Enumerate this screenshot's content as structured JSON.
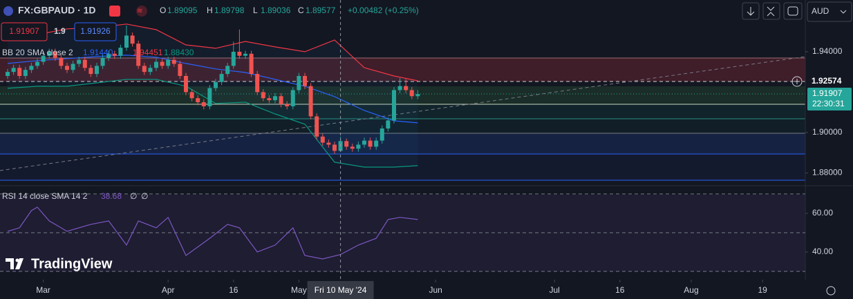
{
  "header": {
    "symbol": "FX:GBPAUD · 1D",
    "ohlc": [
      [
        "O",
        "1.89095"
      ],
      [
        "H",
        "1.89798"
      ],
      [
        "L",
        "1.89036"
      ],
      [
        "C",
        "1.89577"
      ]
    ],
    "change": "+0.00482 (+0.25%)"
  },
  "trade": {
    "sell": "1.91907",
    "spread": "1.9",
    "buy": "1.91926"
  },
  "bb_legend": {
    "label": "BB 20 SMA close 2",
    "values": [
      "1.91440",
      "1.94451",
      "1.88430"
    ]
  },
  "rsi_legend": {
    "label": "RSI 14 close SMA 14 2",
    "values": [
      "38.68",
      "∅",
      "∅"
    ]
  },
  "currency": "AUD",
  "price_labels": {
    "line": "1.92574",
    "last": "1.91907",
    "countdown": "22:30:31"
  },
  "logo": "TradingView",
  "chart_data": [
    {
      "type": "candlestick",
      "xlim": [
        -1.28,
        134.19
      ],
      "ylim": [
        1.874,
        1.9656
      ],
      "yticks": [
        {
          "value": 1.94,
          "label": "1.94000"
        },
        {
          "value": 1.9,
          "label": "1.90000"
        },
        {
          "value": 1.88,
          "label": "1.88000"
        }
      ],
      "xticks": [
        {
          "value": 6,
          "label": "Mar"
        },
        {
          "value": 27,
          "label": "Apr"
        },
        {
          "value": 38,
          "label": "16"
        },
        {
          "value": 49,
          "label": "May"
        },
        {
          "value": 72,
          "label": "Jun"
        },
        {
          "value": 92,
          "label": "Jul"
        },
        {
          "value": 103,
          "label": "16"
        },
        {
          "value": 115,
          "label": "Aug"
        },
        {
          "value": 127,
          "label": "19"
        }
      ],
      "crosshair": {
        "value": 56,
        "label": "Fri 10 May '24"
      },
      "up_color": "#26a69a",
      "down_color": "#ef5350",
      "open": [
        1.928,
        1.93,
        1.932,
        1.928,
        1.931,
        1.933,
        1.935,
        1.938,
        1.94,
        1.937,
        1.933,
        1.931,
        1.934,
        1.936,
        1.932,
        1.929,
        1.933,
        1.937,
        1.939,
        1.938,
        1.942,
        1.948,
        1.944,
        1.933,
        1.93,
        1.932,
        1.935,
        1.933,
        1.936,
        1.934,
        1.928,
        1.92,
        1.917,
        1.915,
        1.913,
        1.922,
        1.925,
        1.929,
        1.933,
        1.94,
        1.938,
        1.939,
        1.929,
        1.92,
        1.917,
        1.916,
        1.918,
        1.914,
        1.913,
        1.921,
        1.928,
        1.923,
        1.908,
        1.898,
        1.895,
        1.894,
        1.89095,
        1.89577,
        1.893,
        1.892,
        1.894,
        1.896,
        1.893,
        1.896,
        1.902,
        1.906,
        1.921,
        1.923,
        1.921,
        1.918
      ],
      "high": [
        1.9315,
        1.9335,
        1.9335,
        1.9325,
        1.9345,
        1.9365,
        1.9395,
        1.9415,
        1.9415,
        1.9385,
        1.9345,
        1.9355,
        1.9375,
        1.9375,
        1.9335,
        1.9345,
        1.9385,
        1.9405,
        1.9405,
        1.9435,
        1.953,
        1.9495,
        1.9455,
        1.9345,
        1.9335,
        1.9365,
        1.9365,
        1.9375,
        1.9375,
        1.9355,
        1.9295,
        1.9215,
        1.9185,
        1.9165,
        1.9235,
        1.9265,
        1.9305,
        1.9345,
        1.945,
        1.951,
        1.9405,
        1.9405,
        1.9305,
        1.9215,
        1.9185,
        1.9195,
        1.9195,
        1.9155,
        1.9225,
        1.9295,
        1.9295,
        1.9245,
        1.9095,
        1.8995,
        1.8965,
        1.8955,
        1.89798,
        1.897,
        1.8945,
        1.8955,
        1.8975,
        1.8975,
        1.8975,
        1.9035,
        1.9075,
        1.9225,
        1.927,
        1.9265,
        1.9225,
        1.921
      ],
      "low": [
        1.9265,
        1.9285,
        1.9265,
        1.9265,
        1.9295,
        1.9315,
        1.9335,
        1.9365,
        1.9355,
        1.9315,
        1.9295,
        1.9295,
        1.9325,
        1.9305,
        1.9275,
        1.9275,
        1.9315,
        1.9355,
        1.9365,
        1.9365,
        1.9405,
        1.9425,
        1.9315,
        1.9285,
        1.9285,
        1.9305,
        1.9315,
        1.9315,
        1.9325,
        1.9265,
        1.9185,
        1.9155,
        1.9135,
        1.9115,
        1.9115,
        1.9205,
        1.9235,
        1.9275,
        1.9315,
        1.9365,
        1.9365,
        1.9275,
        1.9185,
        1.9155,
        1.9145,
        1.9145,
        1.9125,
        1.9115,
        1.9115,
        1.9195,
        1.9215,
        1.9065,
        1.8965,
        1.8935,
        1.8925,
        1.8895,
        1.89036,
        1.8915,
        1.8905,
        1.8905,
        1.8925,
        1.8915,
        1.8915,
        1.8945,
        1.9005,
        1.9045,
        1.9195,
        1.9195,
        1.9165,
        1.9165
      ],
      "close": [
        1.93,
        1.932,
        1.928,
        1.931,
        1.933,
        1.935,
        1.938,
        1.94,
        1.937,
        1.933,
        1.931,
        1.934,
        1.936,
        1.932,
        1.929,
        1.933,
        1.937,
        1.939,
        1.938,
        1.942,
        1.948,
        1.944,
        1.933,
        1.93,
        1.932,
        1.935,
        1.933,
        1.936,
        1.934,
        1.928,
        1.92,
        1.917,
        1.915,
        1.913,
        1.922,
        1.925,
        1.929,
        1.933,
        1.94,
        1.938,
        1.939,
        1.929,
        1.92,
        1.917,
        1.916,
        1.918,
        1.914,
        1.913,
        1.921,
        1.928,
        1.923,
        1.908,
        1.898,
        1.895,
        1.894,
        1.89095,
        1.89577,
        1.893,
        1.892,
        1.894,
        1.896,
        1.893,
        1.896,
        1.902,
        1.906,
        1.921,
        1.923,
        1.921,
        1.918,
        1.91907
      ],
      "bands": {
        "x": [
          0,
          5,
          10,
          15,
          20,
          25,
          30,
          35,
          40,
          45,
          50,
          55,
          60,
          65,
          69
        ],
        "upper": [
          1.9468,
          1.9485,
          1.9513,
          1.952,
          1.9537,
          1.9509,
          1.9434,
          1.9417,
          1.9451,
          1.9424,
          1.94,
          1.9458,
          1.9321,
          1.928,
          1.9256
        ],
        "basis": [
          1.9342,
          1.9356,
          1.9366,
          1.9376,
          1.9383,
          1.9373,
          1.9342,
          1.9315,
          1.9297,
          1.9263,
          1.9229,
          1.9178,
          1.9109,
          1.9058,
          1.9048
        ],
        "lower": [
          1.9219,
          1.9229,
          1.9229,
          1.9246,
          1.9263,
          1.9263,
          1.9229,
          1.9144,
          1.915,
          1.9092,
          1.9041,
          1.8853,
          1.8829,
          1.8829,
          1.8836
        ],
        "colors": {
          "upper": "#f23645",
          "basis": "#2962ff",
          "lower": "#089981"
        }
      }
    },
    {
      "type": "line",
      "xlim": [
        -1.28,
        134.19
      ],
      "ylim": [
        25.7,
        73.9
      ],
      "yticks": [
        {
          "value": 60,
          "label": "60.00"
        },
        {
          "value": 40,
          "label": "40.00"
        }
      ],
      "levels": [
        70,
        50,
        30
      ],
      "color": "#7e57c2",
      "x": [
        0,
        2,
        4,
        5,
        7,
        9,
        10,
        14,
        17,
        20,
        22,
        25,
        27,
        30,
        34,
        37,
        39,
        42,
        45,
        48,
        50,
        53,
        56,
        59,
        62,
        64,
        66,
        69
      ],
      "values": [
        50.7,
        52.5,
        61.4,
        63.2,
        56.1,
        52.5,
        50.7,
        54.3,
        56.1,
        43.6,
        56.1,
        52.5,
        57.9,
        38.2,
        47.1,
        54.3,
        52.5,
        40.0,
        43.6,
        52.5,
        38.2,
        36.4,
        38.68,
        43.6,
        47.1,
        56.8,
        57.9,
        56.8
      ]
    }
  ]
}
